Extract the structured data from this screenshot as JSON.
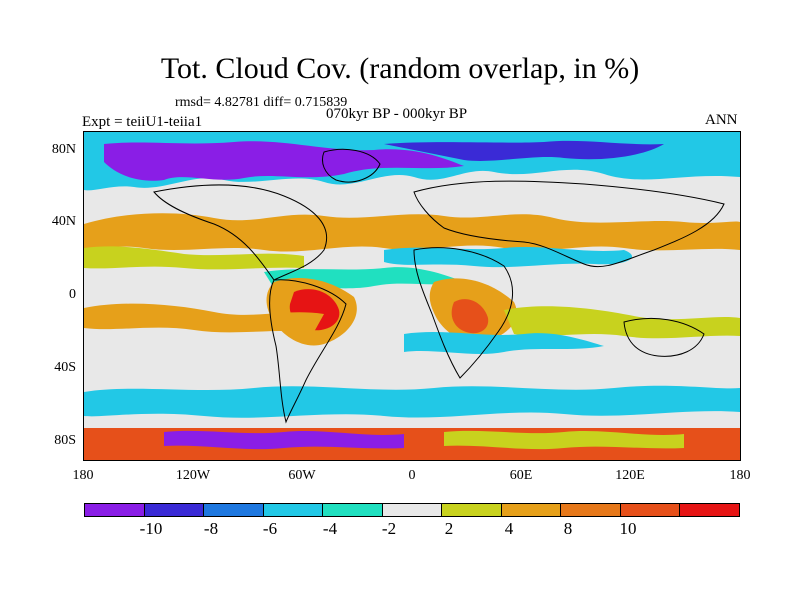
{
  "title": "Tot. Cloud Cov. (random overlap, in %)",
  "stats": "rmsd= 4.82781 diff= 0.715839",
  "experiment": "Expt = teiiU1-teiia1",
  "period": "070kyr BP - 000kyr BP",
  "season": "ANN",
  "y_axis_labels": [
    "80N",
    "40N",
    "0",
    "40S",
    "80S"
  ],
  "x_axis_labels": [
    "180",
    "120W",
    "60W",
    "0",
    "60E",
    "120E",
    "180"
  ],
  "colorbar": {
    "labels": [
      "-10",
      "-8",
      "-6",
      "-4",
      "-2",
      "2",
      "4",
      "8",
      "10"
    ],
    "colors": [
      "#8a1ee6",
      "#3a2ad6",
      "#1e78e0",
      "#22c8e6",
      "#20e0c0",
      "#e8e8e8",
      "#c8d21e",
      "#e6a01a",
      "#e6781a",
      "#e6501a",
      "#e61414"
    ]
  },
  "legend_colors": {
    "strong_negative": "#8a1ee6",
    "negative": "#22c8e6",
    "neutral": "#e8e8e8",
    "positive": "#c8d21e",
    "strong_positive": "#e6a01a",
    "extreme": "#e61414"
  }
}
